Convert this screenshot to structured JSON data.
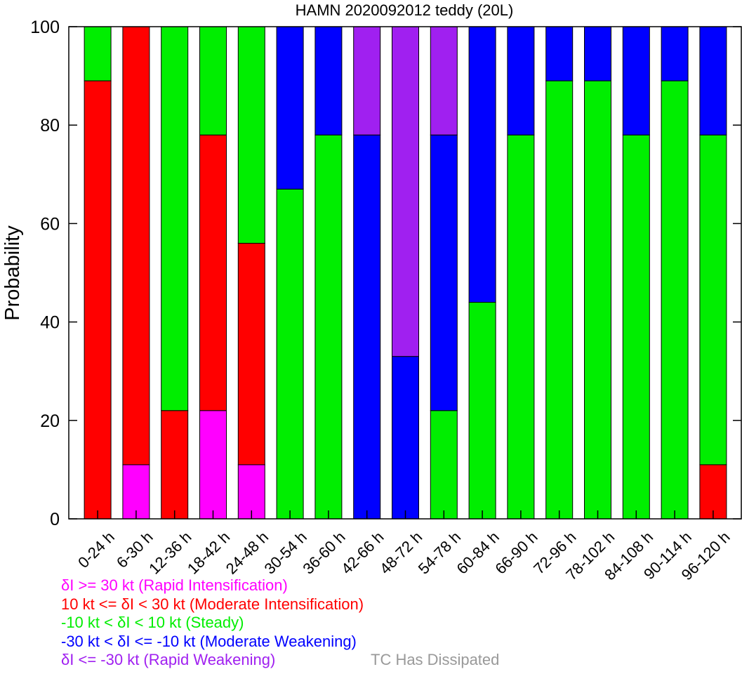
{
  "chart_data": {
    "type": "bar",
    "stacked": true,
    "title": "HAMN 2020092012 teddy (20L)",
    "xlabel": "",
    "ylabel": "Probability",
    "ylim": [
      0,
      100
    ],
    "yticks": [
      0,
      20,
      40,
      60,
      80,
      100
    ],
    "grid": false,
    "categories": [
      "0-24 h",
      "6-30 h",
      "12-36 h",
      "18-42 h",
      "24-48 h",
      "30-54 h",
      "36-60 h",
      "42-66 h",
      "48-72 h",
      "54-78 h",
      "60-84 h",
      "66-90 h",
      "72-96 h",
      "78-102 h",
      "84-108 h",
      "90-114 h",
      "96-120 h"
    ],
    "series": [
      {
        "key": "ri",
        "color": "#ff00ff",
        "values": [
          0,
          11,
          0,
          22,
          11,
          0,
          0,
          0,
          0,
          0,
          0,
          0,
          0,
          0,
          0,
          0,
          0
        ]
      },
      {
        "key": "mi",
        "color": "#ff0000",
        "values": [
          89,
          89,
          22,
          56,
          45,
          0,
          0,
          0,
          0,
          0,
          0,
          0,
          0,
          0,
          0,
          0,
          11
        ]
      },
      {
        "key": "st",
        "color": "#00ee00",
        "values": [
          11,
          0,
          78,
          22,
          44,
          67,
          78,
          0,
          0,
          22,
          44,
          78,
          89,
          89,
          78,
          89,
          67
        ]
      },
      {
        "key": "mw",
        "color": "#0000ff",
        "values": [
          0,
          0,
          0,
          0,
          0,
          33,
          22,
          78,
          33,
          56,
          56,
          22,
          11,
          11,
          22,
          11,
          22
        ]
      },
      {
        "key": "rw",
        "color": "#a020f0",
        "values": [
          0,
          0,
          0,
          0,
          0,
          0,
          0,
          22,
          67,
          22,
          0,
          0,
          0,
          0,
          0,
          0,
          0
        ]
      }
    ]
  },
  "legend": [
    {
      "text": "δI >= 30 kt (Rapid Intensification)",
      "color": "#ff00ff"
    },
    {
      "text": "10 kt <= δI < 30 kt (Moderate Intensification)",
      "color": "#ff0000"
    },
    {
      "text": "-10 kt < δI < 10 kt (Steady)",
      "color": "#00ee00"
    },
    {
      "text": "-30 kt < δI <= -10 kt (Moderate Weakening)",
      "color": "#0000ff"
    },
    {
      "text": "δI <= -30 kt (Rapid Weakening)",
      "color": "#a020f0"
    }
  ],
  "dissipated": {
    "text": "TC Has Dissipated",
    "color": "#999999"
  }
}
